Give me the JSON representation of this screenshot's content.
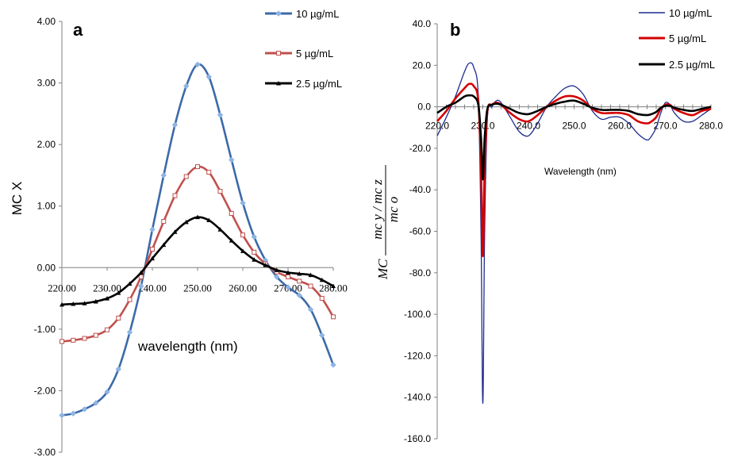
{
  "chart_data": [
    {
      "type": "line",
      "panel_label": "a",
      "xlabel": "wavelength (nm)",
      "ylabel": "MC X",
      "xlim": [
        220,
        280
      ],
      "ylim": [
        -3,
        4
      ],
      "x_ticks": [
        "220.00",
        "230.00",
        "240.00",
        "250.00",
        "260.00",
        "270.00",
        "280.00"
      ],
      "y_ticks": [
        "4.00",
        "3.00",
        "2.00",
        "1.00",
        "0.00",
        "-1.00",
        "-2.00",
        "-3.00"
      ],
      "x": [
        220,
        222.5,
        225,
        227.5,
        230,
        232.5,
        235,
        237.5,
        240,
        242.5,
        245,
        247.5,
        250,
        252.5,
        255,
        257.5,
        260,
        262.5,
        265,
        267.5,
        270,
        272.5,
        275,
        277.5,
        280
      ],
      "series": [
        {
          "name": "10 µg/mL",
          "color": "#3b6aa8",
          "marker": "diamond",
          "values": [
            -2.4,
            -2.37,
            -2.3,
            -2.2,
            -2.02,
            -1.65,
            -1.05,
            -0.3,
            0.62,
            1.5,
            2.32,
            2.95,
            3.3,
            3.1,
            2.48,
            1.75,
            1.05,
            0.5,
            0.12,
            -0.15,
            -0.32,
            -0.45,
            -0.68,
            -1.1,
            -1.58
          ]
        },
        {
          "name": "5 µg/mL",
          "color": "#c0504d",
          "marker": "square",
          "values": [
            -1.2,
            -1.18,
            -1.15,
            -1.1,
            -1.01,
            -0.82,
            -0.52,
            -0.15,
            0.3,
            0.75,
            1.17,
            1.48,
            1.64,
            1.55,
            1.24,
            0.88,
            0.53,
            0.25,
            0.06,
            -0.07,
            -0.15,
            -0.22,
            -0.3,
            -0.5,
            -0.8
          ]
        },
        {
          "name": "2.5 µg/mL",
          "color": "#000000",
          "marker": "triangle",
          "values": [
            -0.6,
            -0.59,
            -0.58,
            -0.55,
            -0.5,
            -0.41,
            -0.26,
            -0.08,
            0.15,
            0.37,
            0.58,
            0.74,
            0.82,
            0.77,
            0.62,
            0.44,
            0.27,
            0.13,
            0.04,
            -0.04,
            -0.08,
            -0.1,
            -0.12,
            -0.2,
            -0.3
          ]
        }
      ]
    },
    {
      "type": "line",
      "panel_label": "b",
      "xlabel": "Wavelength (nm)",
      "ylabel_prefix": "MC",
      "ylabel_numerator": "mc y / mc z",
      "ylabel_denominator": "mc o",
      "xlim": [
        220,
        280
      ],
      "ylim": [
        -160,
        40
      ],
      "x_ticks": [
        "220.0",
        "230.0",
        "240.0",
        "250.0",
        "260.0",
        "270.0",
        "280.0"
      ],
      "y_ticks": [
        "40.0",
        "20.0",
        "0.0",
        "-20.0",
        "-40.0",
        "-60.0",
        "-80.0",
        "-100.0",
        "-120.0",
        "-140.0",
        "-160.0"
      ],
      "series": [
        {
          "name": "10 µg/mL",
          "color": "#1f2d8f",
          "x": [
            220,
            222,
            224,
            226,
            227,
            228,
            229,
            229.6,
            230,
            230.4,
            231,
            232,
            233,
            234,
            236,
            238,
            240,
            242,
            244,
            246,
            248,
            250,
            252,
            254,
            256,
            258,
            260,
            262,
            264,
            266,
            267,
            268,
            269,
            270,
            271,
            272,
            274,
            276,
            278,
            280
          ],
          "values": [
            -14,
            -5,
            5,
            17,
            21,
            19,
            5,
            -60,
            -143,
            -60,
            -5,
            0,
            3,
            2,
            -5,
            -12,
            -14,
            -8,
            0,
            5,
            9,
            10,
            6,
            -2,
            -6,
            -5,
            -5,
            -8,
            -13,
            -16,
            -14,
            -10,
            -3,
            2,
            1,
            -3,
            -7,
            -7,
            -4,
            -1
          ]
        },
        {
          "name": "5 µg/mL",
          "color": "#d40000",
          "x": [
            220,
            222,
            224,
            226,
            227,
            228,
            229,
            229.6,
            230,
            230.4,
            231,
            232,
            233,
            234,
            236,
            238,
            240,
            242,
            244,
            246,
            248,
            250,
            252,
            254,
            256,
            258,
            260,
            262,
            264,
            266,
            267,
            268,
            269,
            270,
            271,
            272,
            274,
            276,
            278,
            280
          ],
          "values": [
            -7,
            -2,
            4,
            9,
            11,
            10,
            3,
            -30,
            -72,
            -30,
            -2,
            1,
            2,
            1,
            -3,
            -6,
            -7,
            -4,
            0,
            3,
            5,
            5,
            3,
            -1,
            -3,
            -3,
            -3,
            -4,
            -7,
            -8,
            -7,
            -5,
            -1,
            1,
            1,
            -1,
            -3,
            -4,
            -2,
            -1
          ]
        },
        {
          "name": "2.5 µg/mL",
          "color": "#000000",
          "x": [
            220,
            222,
            224,
            226,
            227,
            228,
            229,
            229.6,
            230,
            230.4,
            231,
            232,
            233,
            234,
            236,
            238,
            240,
            242,
            244,
            246,
            248,
            250,
            252,
            254,
            256,
            258,
            260,
            262,
            264,
            266,
            267,
            268,
            269,
            270,
            271,
            272,
            274,
            276,
            278,
            280
          ],
          "values": [
            -3,
            0,
            2,
            5,
            5.5,
            5,
            1,
            -15,
            -35,
            -15,
            -1,
            1,
            1.5,
            1,
            -1,
            -3,
            -3.5,
            -2,
            0,
            1.5,
            2.5,
            3,
            1.5,
            -0.5,
            -1.5,
            -1.5,
            -1.5,
            -2,
            -3.5,
            -4,
            -3.5,
            -2.5,
            -0.5,
            0.5,
            0.5,
            -0.5,
            -1.5,
            -2,
            -1,
            0
          ]
        }
      ]
    }
  ]
}
